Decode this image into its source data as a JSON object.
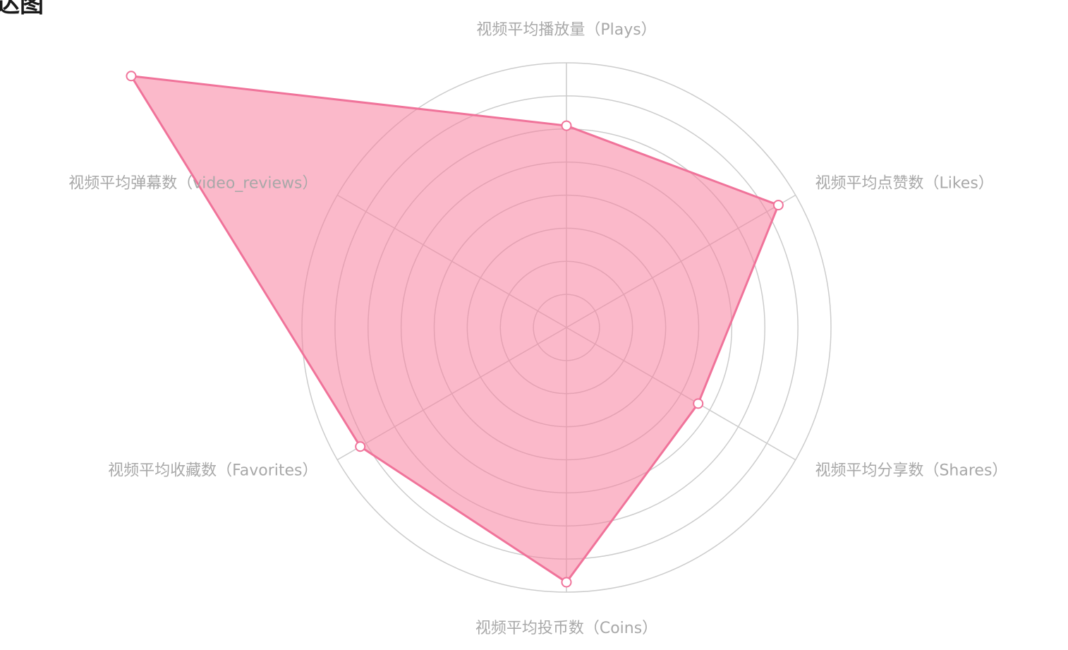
{
  "page": {
    "title": "达图"
  },
  "chart_data": {
    "type": "radar",
    "title": "达图",
    "indicators": [
      "视频平均播放量（Plays）",
      "视频平均点赞数（Likes）",
      "视频平均分享数（Shares）",
      "视频平均投币数（Coins）",
      "视频平均收藏数（Favorites）",
      "视频平均弹幕数（video_reviews）"
    ],
    "max": 8,
    "split_number": 8,
    "series": [
      {
        "values": [
          6.1,
          7.4,
          4.6,
          7.7,
          7.2,
          15.2
        ],
        "color": "#f0739a",
        "fill": "#f7809f",
        "fill_opacity": 0.55
      }
    ],
    "grid": true,
    "colors": {
      "grid": "#cccccc",
      "labels": "#a8a8a8"
    }
  }
}
